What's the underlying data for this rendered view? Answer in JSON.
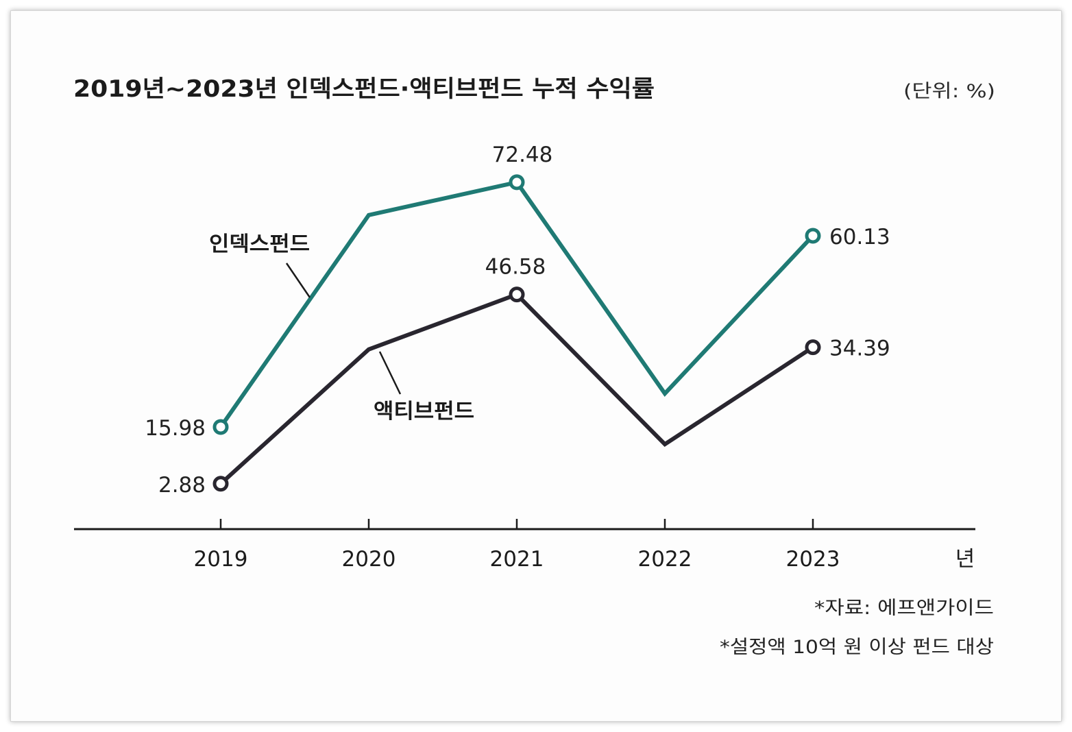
{
  "chart_data": {
    "type": "line",
    "title": "2019년~2023년 인덱스펀드·액티브펀드 누적 수익률",
    "unit": "(단위: %)",
    "xlabel": "",
    "ylabel": "",
    "x_unit": "년",
    "categories": [
      "2019",
      "2020",
      "2021",
      "2022",
      "2023"
    ],
    "series": [
      {
        "name": "인덱스펀드",
        "color": "#1f7a74",
        "values": [
          15.98,
          64.9,
          72.48,
          23.7,
          60.13
        ],
        "labeled": [
          true,
          false,
          true,
          false,
          true
        ]
      },
      {
        "name": "액티브펀드",
        "color": "#29262f",
        "values": [
          2.88,
          33.9,
          46.58,
          12.0,
          34.39
        ],
        "labeled": [
          true,
          false,
          true,
          false,
          true
        ]
      }
    ],
    "grid": false,
    "legend": "inline",
    "notes": [
      "*자료: 에프앤가이드",
      "*설정액 10억 원 이상 펀드 대상"
    ]
  }
}
